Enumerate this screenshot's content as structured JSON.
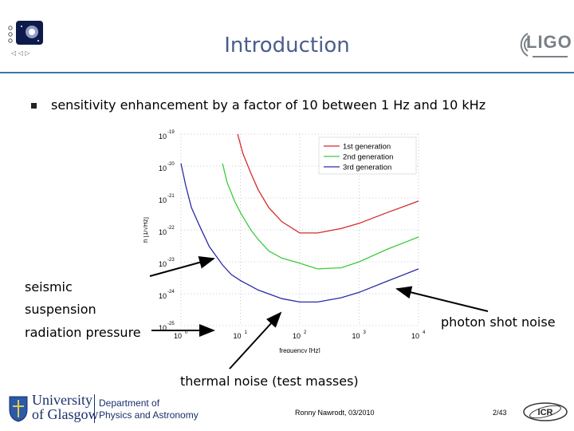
{
  "slide": {
    "title": "Introduction",
    "bullet": "sensitivity enhancement by a factor of 10 between 1 Hz and 10 kHz",
    "annotations": {
      "seismic": "seismic",
      "suspension": "suspension",
      "radiation": "radiation pressure",
      "photon": "photon shot noise",
      "thermal": "thermal noise (test masses)"
    },
    "footer": {
      "author": "Ronny Nawrodt, 03/2010",
      "page": "2/43",
      "university_line1": "University",
      "university_line2": "of Glasgow",
      "department_line1": "Department of",
      "department_line2": "Physics and Astronomy"
    },
    "logos": {
      "ligo": "LIGO",
      "icr": "ICR"
    },
    "colors": {
      "title": "#4a5d8c",
      "rule": "#3f73a8",
      "gen1": "#d42a2a",
      "gen2": "#3ccc3c",
      "gen3": "#2a2aa8"
    }
  },
  "chart_data": {
    "type": "line",
    "xlabel": "frequency [Hz]",
    "ylabel": "h [1/√Hz]",
    "x_scale": "log",
    "y_scale": "log",
    "xlim": [
      1,
      10000
    ],
    "ylim": [
      1e-25,
      1e-19
    ],
    "x_ticks": [
      {
        "v": 1,
        "base": "10",
        "exp": "0"
      },
      {
        "v": 10,
        "base": "10",
        "exp": "1"
      },
      {
        "v": 100,
        "base": "10",
        "exp": "2"
      },
      {
        "v": 1000,
        "base": "10",
        "exp": "3"
      },
      {
        "v": 10000,
        "base": "10",
        "exp": "4"
      }
    ],
    "y_ticks": [
      {
        "v": 1e-19,
        "base": "10",
        "exp": "-19"
      },
      {
        "v": 1e-20,
        "base": "10",
        "exp": "-20"
      },
      {
        "v": 1e-21,
        "base": "10",
        "exp": "-21"
      },
      {
        "v": 1e-22,
        "base": "10",
        "exp": "-22"
      },
      {
        "v": 1e-23,
        "base": "10",
        "exp": "-23"
      },
      {
        "v": 1e-24,
        "base": "10",
        "exp": "-24"
      },
      {
        "v": 1e-25,
        "base": "10",
        "exp": "-25"
      }
    ],
    "legend_position": "top-right",
    "series": [
      {
        "name": "1st generation",
        "color": "#d42a2a",
        "x": [
          9,
          11,
          15,
          20,
          30,
          50,
          100,
          200,
          500,
          1000,
          3000,
          10000
        ],
        "y": [
          1e-19,
          2.5e-20,
          6e-21,
          1.8e-21,
          5e-22,
          1.8e-22,
          8e-23,
          8e-23,
          1.1e-22,
          1.6e-22,
          3.5e-22,
          8e-22
        ]
      },
      {
        "name": "2nd generation",
        "color": "#3ccc3c",
        "x": [
          5,
          6,
          8,
          10,
          15,
          20,
          30,
          50,
          100,
          200,
          500,
          1000,
          3000,
          10000
        ],
        "y": [
          1.2e-20,
          3e-21,
          8e-22,
          3.5e-22,
          1e-22,
          5e-23,
          2.2e-23,
          1.3e-23,
          9e-24,
          6e-24,
          6.5e-24,
          1e-23,
          2.5e-23,
          6e-23
        ]
      },
      {
        "name": "3rd generation",
        "color": "#2a2aa8",
        "x": [
          1,
          1.2,
          1.5,
          2,
          3,
          5,
          7,
          10,
          20,
          50,
          100,
          200,
          500,
          1000,
          3000,
          10000
        ],
        "y": [
          1.2e-20,
          2.5e-21,
          5e-22,
          1.5e-22,
          3e-23,
          8e-24,
          4e-24,
          2.6e-24,
          1.3e-24,
          7e-25,
          5.5e-25,
          5.5e-25,
          7.5e-25,
          1.1e-24,
          2.5e-24,
          6e-24
        ]
      }
    ]
  }
}
